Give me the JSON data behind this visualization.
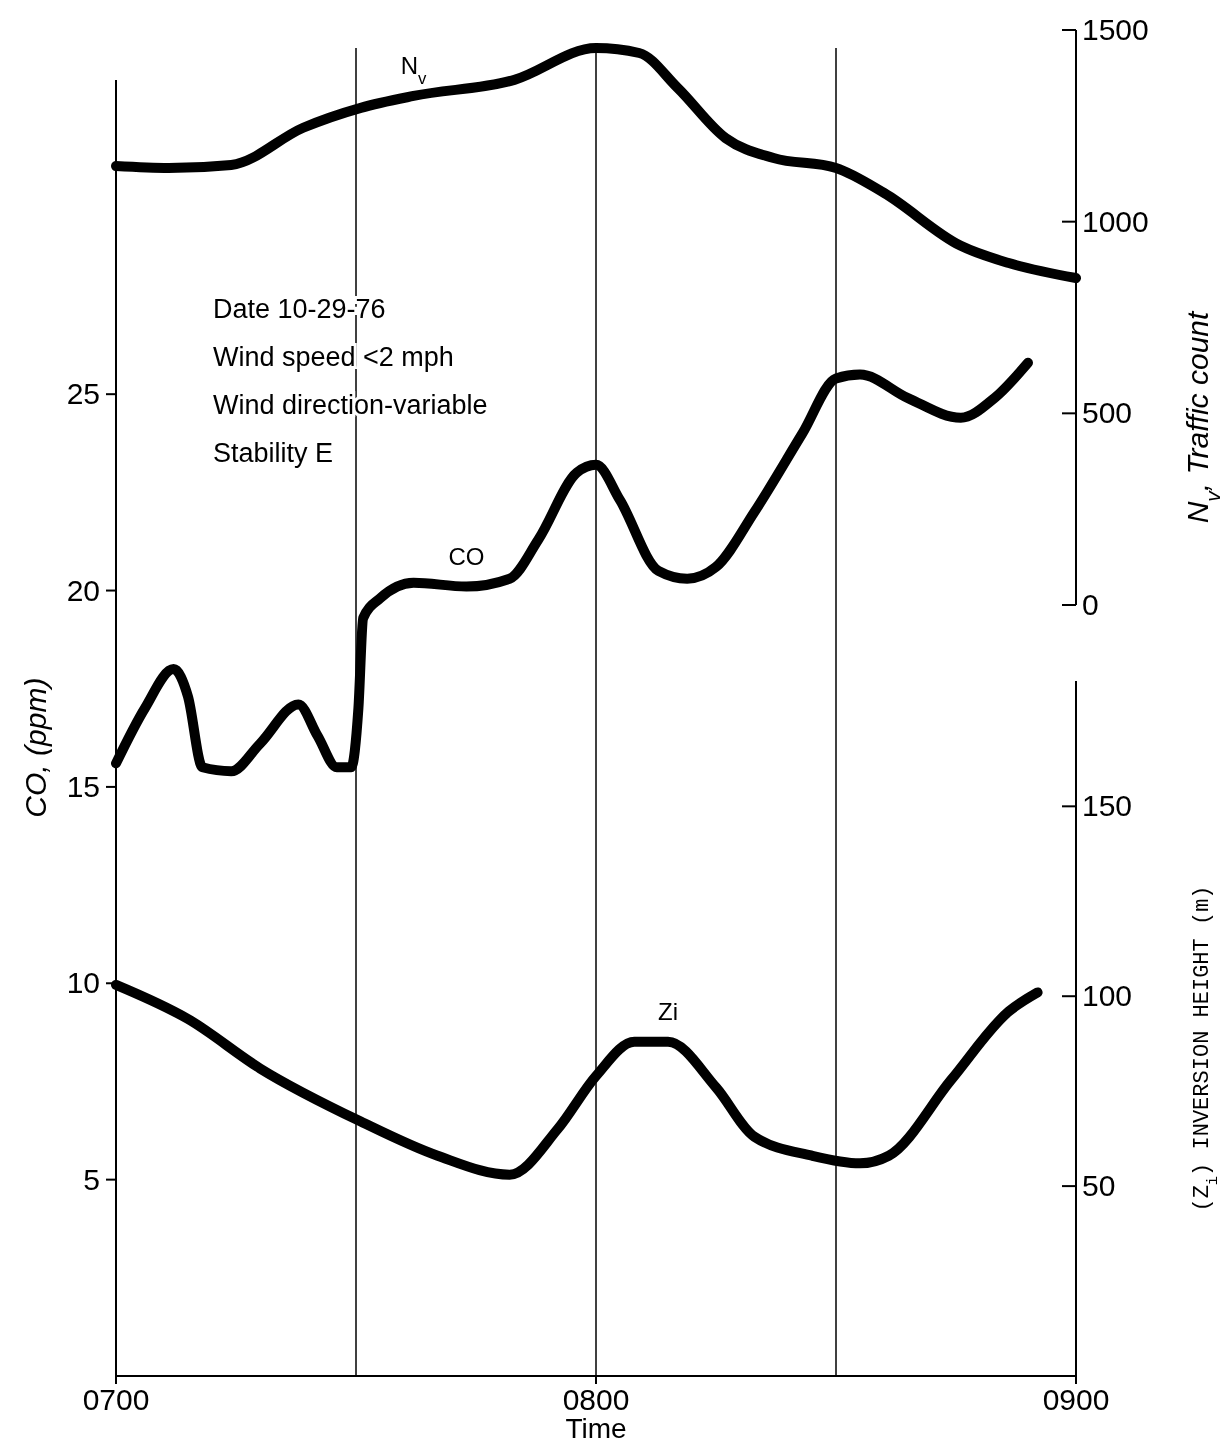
{
  "chart_data": {
    "type": "line",
    "xlabel": "Time",
    "ylabel": "CO, (ppm)",
    "y2label": "N$_{v}$, Traffic count",
    "y3label": "(Z$_{i}$) INVERSION HEIGHT (m)",
    "xlim": [
      700,
      900
    ],
    "xticks": [
      {
        "value": 700,
        "label": "0700"
      },
      {
        "value": 800,
        "label": "0800"
      },
      {
        "value": 900,
        "label": "0900"
      }
    ],
    "ylim": [
      0,
      33
    ],
    "yticks": [
      5,
      10,
      15,
      20,
      25
    ],
    "y2lim": [
      0,
      1500
    ],
    "y2ticks": [
      0,
      500,
      1000,
      1500
    ],
    "y3lim": [
      0,
      183
    ],
    "y3ticks": [
      50,
      100,
      150
    ],
    "grid": false,
    "line_style": "solid",
    "marker": "none",
    "ref_lines": [
      {
        "axis": "x",
        "value": 750
      },
      {
        "axis": "x",
        "value": 800
      },
      {
        "axis": "x",
        "value": 850
      }
    ],
    "annotations": [
      "Date 10-29-76",
      "Wind speed <2 mph",
      "Wind direction-variable",
      "Stability E"
    ],
    "series": [
      {
        "name": "N$_{v}$",
        "color": "#000000",
        "axis": "y2",
        "x": [
          700,
          711,
          724,
          739,
          751,
          762,
          783,
          800,
          809,
          817,
          827,
          837,
          850,
          860,
          876,
          886,
          900
        ],
        "values": [
          1145,
          1140,
          1148,
          1245,
          1297,
          1328,
          1370,
          1453,
          1440,
          1349,
          1218,
          1166,
          1140,
          1075,
          937,
          892,
          853
        ]
      },
      {
        "name": "CO",
        "color": "#000000",
        "x": [
          700,
          706,
          712,
          715,
          718,
          724,
          730,
          738,
          742,
          746,
          749,
          750.5,
          751.5,
          755,
          762,
          773,
          782,
          788,
          796,
          800,
          805,
          813,
          819,
          825,
          833,
          843,
          850,
          855,
          865,
          876,
          883,
          890
        ],
        "values": [
          15.6,
          17.0,
          18.0,
          17.3,
          15.5,
          15.4,
          16.1,
          17.1,
          16.3,
          15.5,
          15.5,
          17.0,
          19.3,
          19.8,
          20.2,
          20.1,
          20.3,
          21.3,
          23.0,
          23.2,
          22.3,
          20.5,
          20.3,
          20.6,
          22.0,
          24.0,
          25.4,
          25.5,
          24.9,
          24.4,
          24.9,
          25.8
        ]
      },
      {
        "name": "Zi",
        "color": "#000000",
        "axis": "y3",
        "x": [
          700,
          715,
          730,
          751,
          767,
          782,
          792,
          800,
          808,
          815,
          825,
          833,
          845,
          855,
          861,
          874,
          886,
          892
        ],
        "values": [
          103,
          94,
          81,
          67,
          58,
          53,
          65,
          79,
          88,
          88,
          76,
          63,
          58,
          56,
          58,
          78,
          96,
          101
        ]
      }
    ]
  }
}
